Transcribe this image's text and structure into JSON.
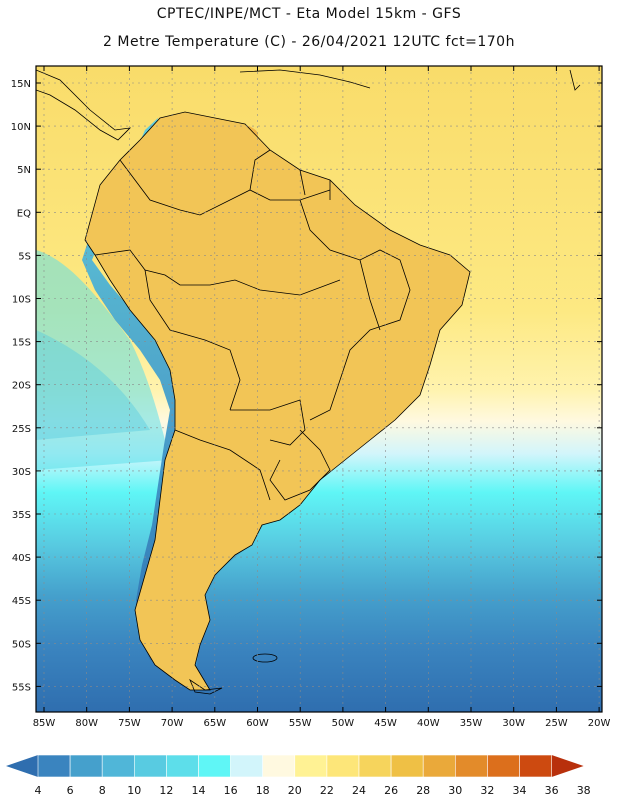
{
  "header": {
    "line1": "CPTEC/INPE/MCT  -   Eta Model 15km  -  GFS",
    "line2": "2 Metre Temperature (C) - 26/04/2021 12UTC fct=170h"
  },
  "axes": {
    "lat_labels": [
      "15N",
      "10N",
      "5N",
      "EQ",
      "5S",
      "10S",
      "15S",
      "20S",
      "25S",
      "30S",
      "35S",
      "40S",
      "45S",
      "50S",
      "55S"
    ],
    "lon_labels": [
      "85W",
      "80W",
      "75W",
      "70W",
      "65W",
      "60W",
      "55W",
      "50W",
      "45W",
      "40W",
      "35W",
      "30W",
      "25W",
      "20W"
    ]
  },
  "colorbar": {
    "labels": [
      "4",
      "6",
      "8",
      "10",
      "12",
      "14",
      "16",
      "18",
      "20",
      "22",
      "24",
      "26",
      "28",
      "30",
      "32",
      "34",
      "36",
      "38"
    ],
    "colors": [
      "#2f6eaf",
      "#3a84bf",
      "#45a0cc",
      "#50b6d8",
      "#58cbe1",
      "#5ddeea",
      "#5ff6f6",
      "#d2f5fb",
      "#fff9e0",
      "#fff294",
      "#fde679",
      "#f6d45c",
      "#efc045",
      "#eaa93a",
      "#e38b2a",
      "#dc6f1c",
      "#cd4a10",
      "#b8300c"
    ]
  },
  "palette": {
    "land_warm": "#f4c860",
    "land_hot": "#e99a3a",
    "ocean_warm": "#fde982",
    "ocean_cool": "#5ce3ee",
    "ocean_cold": "#3a84bf",
    "andes": "#58cbe1",
    "border": "#000000"
  }
}
